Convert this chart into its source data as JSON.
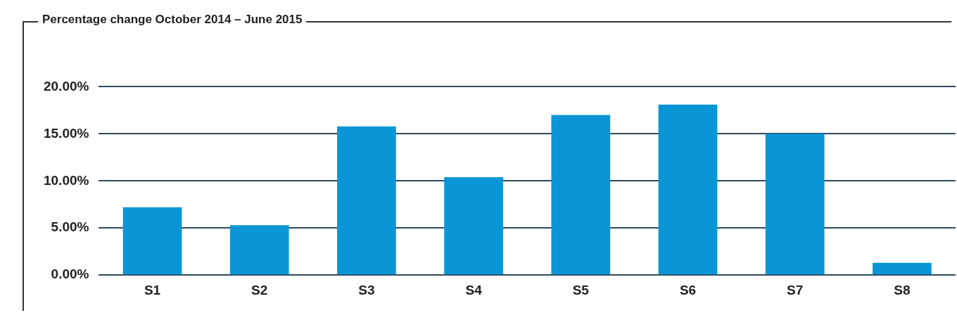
{
  "chart_data": {
    "type": "bar",
    "title": "Percentage change October 2014 – June 2015",
    "categories": [
      "S1",
      "S2",
      "S3",
      "S4",
      "S5",
      "S6",
      "S7",
      "S8"
    ],
    "values": [
      7.2,
      5.3,
      15.8,
      10.4,
      17.0,
      18.1,
      15.0,
      1.3
    ],
    "color": "#0a96d6",
    "ylim": [
      0,
      20
    ],
    "yticks": [
      {
        "value": 0,
        "label": "0.00%"
      },
      {
        "value": 5,
        "label": "5.00%"
      },
      {
        "value": 10,
        "label": "10.00%"
      },
      {
        "value": 15,
        "label": "15.00%"
      },
      {
        "value": 20,
        "label": "20.00%"
      }
    ],
    "grid": "y"
  }
}
